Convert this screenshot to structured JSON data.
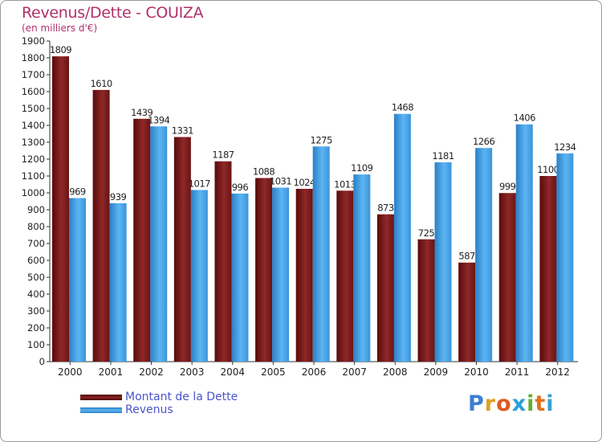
{
  "header": {
    "title": "Revenus/Dette - COUIZA",
    "subtitle": "(en milliers d'€)"
  },
  "chart_data": {
    "type": "bar",
    "title": "Revenus/Dette - COUIZA",
    "ylabel": "(en milliers d'€)",
    "ylim": [
      0,
      1900
    ],
    "ytick_step": 100,
    "grid": false,
    "legend_position": "bottom-left",
    "categories": [
      "2000",
      "2001",
      "2002",
      "2003",
      "2004",
      "2005",
      "2006",
      "2007",
      "2008",
      "2009",
      "2010",
      "2011",
      "2012"
    ],
    "series": [
      {
        "name": "Montant de la Dette",
        "color": "#7a1a1a",
        "values": [
          1809,
          1610,
          1439,
          1331,
          1187,
          1088,
          1024,
          1013,
          873,
          725,
          587,
          999,
          1100
        ]
      },
      {
        "name": "Revenus",
        "color": "#3b9be0",
        "values": [
          969,
          939,
          1394,
          1017,
          996,
          1031,
          1275,
          1109,
          1468,
          1181,
          1266,
          1406,
          1234
        ]
      }
    ]
  },
  "legend": {
    "items": [
      {
        "label": "Montant de la Dette",
        "color": "#6b0f0f"
      },
      {
        "label": "Revenus",
        "color": "#3c9ee2"
      }
    ]
  },
  "logo": {
    "letters": [
      "P",
      "r",
      "o",
      "x",
      "i",
      "t",
      "i"
    ],
    "colors": [
      "#3a7fd0",
      "#e0a020",
      "#e05a20",
      "#2aa0d8",
      "#60b030",
      "#e07020",
      "#3aa0d0"
    ]
  }
}
